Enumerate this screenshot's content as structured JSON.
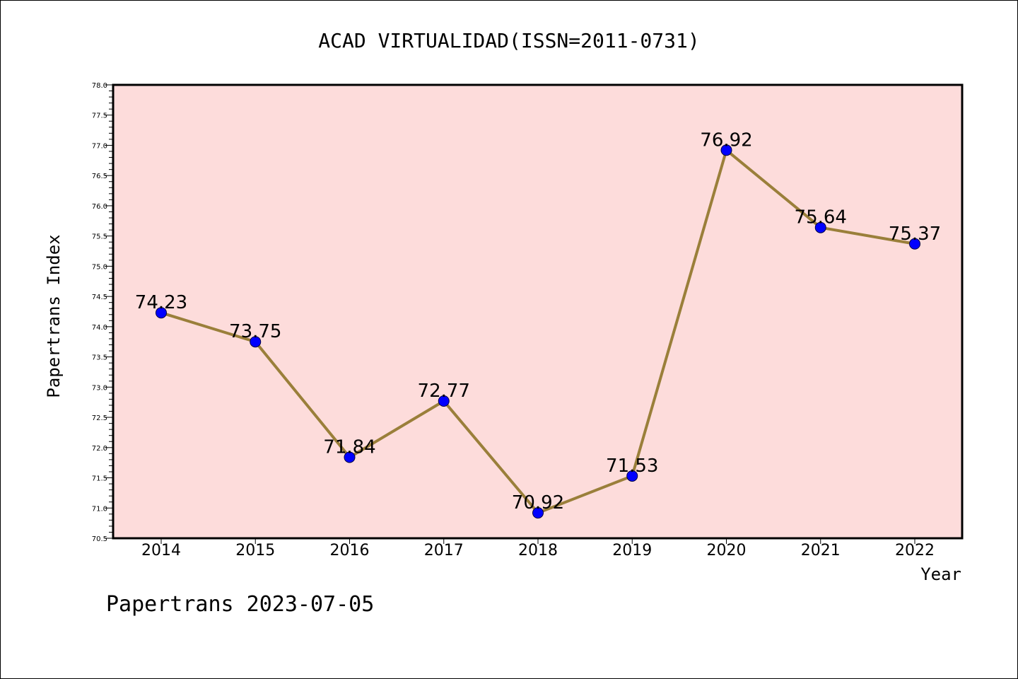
{
  "chart_data": {
    "type": "line",
    "title": "ACAD VIRTUALIDAD(ISSN=2011-0731)",
    "xlabel": "Year",
    "ylabel": "Papertrans Index",
    "categories": [
      "2014",
      "2015",
      "2016",
      "2017",
      "2018",
      "2019",
      "2020",
      "2021",
      "2022"
    ],
    "values": [
      74.23,
      73.75,
      71.84,
      72.77,
      70.92,
      71.53,
      76.92,
      75.64,
      75.37
    ],
    "value_labels": [
      "74.23",
      "73.75",
      "71.84",
      "72.77",
      "70.92",
      "71.53",
      "76.92",
      "75.64",
      "75.37"
    ],
    "ylim": [
      70.5,
      78.0
    ],
    "yticks": [
      "70.5",
      "71.0",
      "71.5",
      "72.0",
      "72.5",
      "73.0",
      "73.5",
      "74.0",
      "74.5",
      "75.0",
      "75.5",
      "76.0",
      "76.5",
      "77.0",
      "77.5",
      "78.0"
    ],
    "grid": false,
    "colors": {
      "plot_bg": "#fddcdb",
      "line": "#9a7f3a",
      "marker": "#0000ff"
    }
  },
  "footer": "Papertrans 2023-07-05"
}
